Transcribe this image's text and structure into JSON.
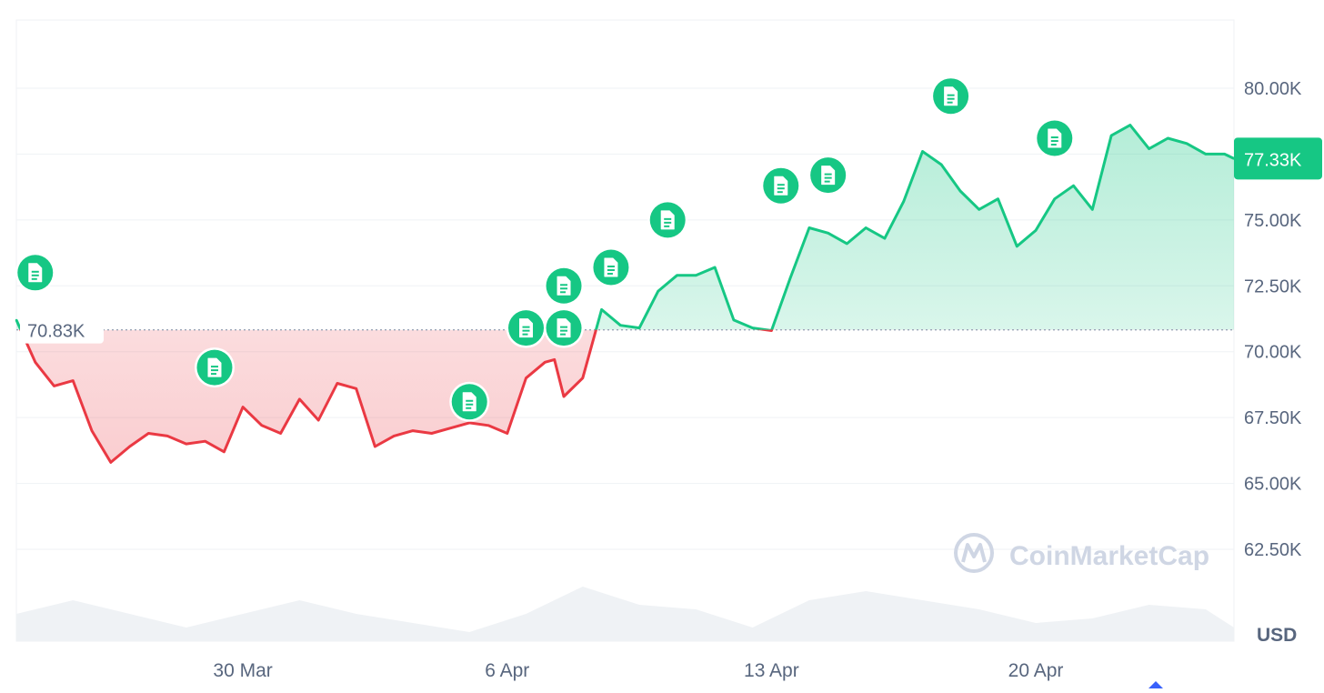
{
  "chart_data": {
    "type": "area",
    "baseline": {
      "value": 70.83,
      "label": "70.83K"
    },
    "current": {
      "value": 77.33,
      "label": "77.33K"
    },
    "ylim": [
      60.0,
      82.5
    ],
    "y_ticks": [
      {
        "value": 62.5,
        "label": "62.50K"
      },
      {
        "value": 65.0,
        "label": "65.00K"
      },
      {
        "value": 67.5,
        "label": "67.50K"
      },
      {
        "value": 70.0,
        "label": "70.00K"
      },
      {
        "value": 72.5,
        "label": "72.50K"
      },
      {
        "value": 75.0,
        "label": "75.00K"
      },
      {
        "value": 77.5,
        "label": "77.50K"
      },
      {
        "value": 80.0,
        "label": "80.00K"
      }
    ],
    "x_range": [
      "2025-03-24T00:00",
      "2025-04-25T06:00"
    ],
    "x_ticks": [
      {
        "date": "2025-03-30",
        "label": "30 Mar"
      },
      {
        "date": "2025-04-06",
        "label": "6 Apr"
      },
      {
        "date": "2025-04-13",
        "label": "13 Apr"
      },
      {
        "date": "2025-04-20",
        "label": "20 Apr"
      }
    ],
    "currency_label": "USD",
    "watermark": "CoinMarketCap",
    "series": [
      {
        "x": [
          "2025-03-24T00:00",
          "2025-03-24T12:00",
          "2025-03-25T00:00",
          "2025-03-25T12:00",
          "2025-03-26T00:00",
          "2025-03-26T12:00",
          "2025-03-27T00:00",
          "2025-03-27T12:00",
          "2025-03-28T00:00",
          "2025-03-28T12:00",
          "2025-03-29T00:00",
          "2025-03-29T12:00",
          "2025-03-30T00:00",
          "2025-03-30T12:00",
          "2025-03-31T00:00",
          "2025-03-31T12:00",
          "2025-04-01T00:00",
          "2025-04-01T12:00",
          "2025-04-02T00:00",
          "2025-04-02T12:00",
          "2025-04-03T00:00",
          "2025-04-03T12:00",
          "2025-04-04T00:00",
          "2025-04-04T12:00",
          "2025-04-05T00:00",
          "2025-04-05T12:00",
          "2025-04-06T00:00",
          "2025-04-06T12:00",
          "2025-04-07T00:00",
          "2025-04-07T06:00",
          "2025-04-07T12:00",
          "2025-04-08T00:00",
          "2025-04-08T12:00",
          "2025-04-09T00:00",
          "2025-04-09T12:00",
          "2025-04-10T00:00",
          "2025-04-10T12:00",
          "2025-04-11T00:00",
          "2025-04-11T12:00",
          "2025-04-12T00:00",
          "2025-04-12T12:00",
          "2025-04-13T00:00",
          "2025-04-13T12:00",
          "2025-04-14T00:00",
          "2025-04-14T12:00",
          "2025-04-15T00:00",
          "2025-04-15T12:00",
          "2025-04-16T00:00",
          "2025-04-16T12:00",
          "2025-04-17T00:00",
          "2025-04-17T12:00",
          "2025-04-18T00:00",
          "2025-04-18T12:00",
          "2025-04-19T00:00",
          "2025-04-19T12:00",
          "2025-04-20T00:00",
          "2025-04-20T12:00",
          "2025-04-21T00:00",
          "2025-04-21T12:00",
          "2025-04-22T00:00",
          "2025-04-22T12:00",
          "2025-04-23T00:00",
          "2025-04-23T12:00",
          "2025-04-24T00:00",
          "2025-04-24T12:00",
          "2025-04-25T00:00",
          "2025-04-25T06:00"
        ],
        "values": [
          71.2,
          69.6,
          68.7,
          68.9,
          67.0,
          65.8,
          66.4,
          66.9,
          66.8,
          66.5,
          66.6,
          66.2,
          67.9,
          67.2,
          66.9,
          68.2,
          67.4,
          68.8,
          68.6,
          66.4,
          66.8,
          67.0,
          66.9,
          67.1,
          67.3,
          67.2,
          66.9,
          69.0,
          69.6,
          69.7,
          68.3,
          69.0,
          71.6,
          71.0,
          70.9,
          72.3,
          72.9,
          72.9,
          73.2,
          71.2,
          70.9,
          70.8,
          72.8,
          74.7,
          74.5,
          74.1,
          74.7,
          74.3,
          75.7,
          77.6,
          77.1,
          76.1,
          75.4,
          75.8,
          74.0,
          74.6,
          75.8,
          76.3,
          75.4,
          78.2,
          78.6,
          77.7,
          78.1,
          77.9,
          77.5,
          77.5,
          77.33
        ]
      }
    ],
    "volume": {
      "x": [
        "2025-03-24T00:00",
        "2025-03-25T12:00",
        "2025-03-27T00:00",
        "2025-03-28T12:00",
        "2025-03-30T00:00",
        "2025-03-31T12:00",
        "2025-04-02T00:00",
        "2025-04-03T12:00",
        "2025-04-05T00:00",
        "2025-04-06T12:00",
        "2025-04-08T00:00",
        "2025-04-09T12:00",
        "2025-04-11T00:00",
        "2025-04-12T12:00",
        "2025-04-14T00:00",
        "2025-04-15T12:00",
        "2025-04-17T00:00",
        "2025-04-18T12:00",
        "2025-04-20T00:00",
        "2025-04-21T12:00",
        "2025-04-23T00:00",
        "2025-04-24T12:00",
        "2025-04-25T06:00"
      ],
      "values": [
        0.3,
        0.45,
        0.3,
        0.15,
        0.3,
        0.45,
        0.3,
        0.2,
        0.1,
        0.3,
        0.6,
        0.4,
        0.35,
        0.15,
        0.45,
        0.55,
        0.45,
        0.35,
        0.2,
        0.25,
        0.4,
        0.35,
        0.15
      ]
    },
    "news_markers": [
      {
        "x": "2025-03-24T12:00",
        "value": 73.0,
        "icon": "document-icon"
      },
      {
        "x": "2025-03-29T06:00",
        "value": 69.4,
        "icon": "document-icon"
      },
      {
        "x": "2025-04-05T00:00",
        "value": 68.1,
        "icon": "document-icon"
      },
      {
        "x": "2025-04-06T12:00",
        "value": 70.9,
        "icon": "document-icon"
      },
      {
        "x": "2025-04-07T12:00",
        "value": 72.5,
        "icon": "document-icon"
      },
      {
        "x": "2025-04-07T12:00",
        "value": 70.9,
        "icon": "document-icon"
      },
      {
        "x": "2025-04-08T18:00",
        "value": 73.2,
        "icon": "document-icon"
      },
      {
        "x": "2025-04-10T06:00",
        "value": 75.0,
        "icon": "document-icon"
      },
      {
        "x": "2025-04-13T06:00",
        "value": 76.3,
        "icon": "document-icon"
      },
      {
        "x": "2025-04-14T12:00",
        "value": 76.7,
        "icon": "document-icon"
      },
      {
        "x": "2025-04-17T18:00",
        "value": 79.7,
        "icon": "document-icon"
      },
      {
        "x": "2025-04-20T12:00",
        "value": 78.1,
        "icon": "document-icon"
      }
    ]
  },
  "colors": {
    "up": "#16c784",
    "down": "#ea3943",
    "grid": "#eff2f5",
    "axis_text": "#58667e",
    "volume": "#eff2f5",
    "watermark": "#cfd6e4"
  }
}
